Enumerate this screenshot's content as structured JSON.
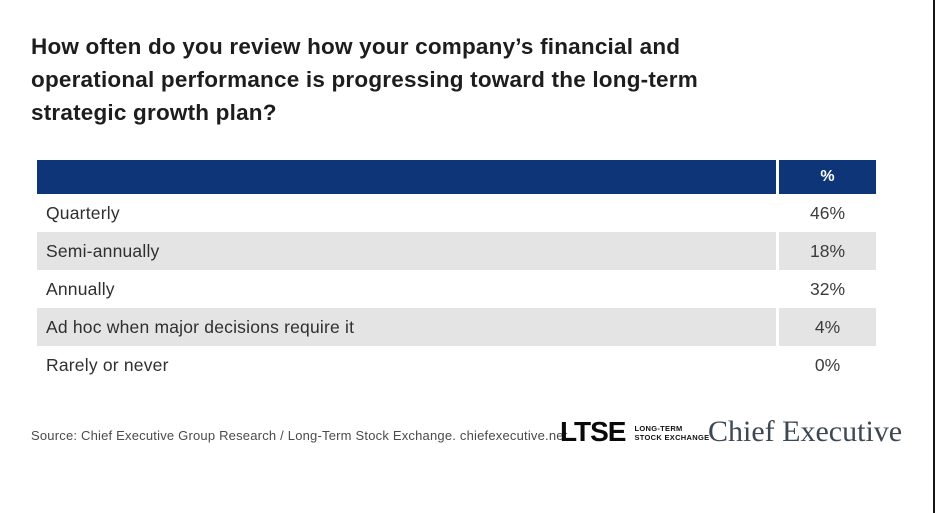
{
  "page": {
    "title_lines": [
      "How often do you review how your company’s financial and",
      "operational performance is progressing toward the long-term",
      "strategic growth plan?"
    ]
  },
  "table": {
    "header": {
      "percent_label": "%"
    },
    "rows": [
      {
        "label": "Quarterly",
        "value": "46%"
      },
      {
        "label": "Semi-annually",
        "value": "18%"
      },
      {
        "label": "Annually",
        "value": "32%"
      },
      {
        "label": "Ad hoc when major decisions require it",
        "value": "4%"
      },
      {
        "label": "Rarely or never",
        "value": "0%"
      }
    ]
  },
  "footer": {
    "source": "Source:  Chief Executive Group Research  / Long-Term Stock Exchange. chiefexecutive.net",
    "ltse_logo": {
      "wordmark": "LTSE",
      "tagline_line1": "LONG-TERM",
      "tagline_line2": "STOCK EXCHANGE"
    },
    "chief_executive_logo": "Chief Executive"
  },
  "colors": {
    "header_navy": "#0d3577",
    "row_alt_gray": "#e4e4e4",
    "chief_executive_slate": "#3d4852"
  },
  "chart_data": {
    "type": "table",
    "title": "How often do you review how your company’s financial and operational performance is progressing toward the long-term strategic growth plan?",
    "categories": [
      "Quarterly",
      "Semi-annually",
      "Annually",
      "Ad hoc when major decisions require it",
      "Rarely or never"
    ],
    "values": [
      46,
      18,
      32,
      4,
      0
    ],
    "value_unit": "%",
    "columns": [
      "",
      "%"
    ],
    "source": "Chief Executive Group Research / Long-Term Stock Exchange. chiefexecutive.net"
  }
}
